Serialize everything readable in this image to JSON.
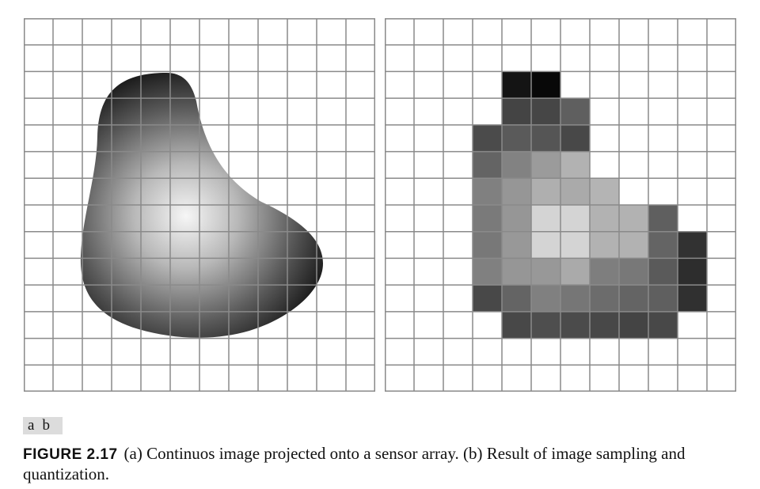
{
  "panel_labels": [
    "a",
    "b"
  ],
  "caption": {
    "figure_label": "FIGURE 2.17",
    "text": "(a) Continuos image projected onto a sensor array. (b) Result of image sampling and quantization."
  },
  "sensor_grid": {
    "columns": 12,
    "rows": 14
  },
  "continuous_image": {
    "description_colors": {
      "bright": "#f4f4f4",
      "mid": "#9a9a9a",
      "dark": "#0a0a0a"
    }
  },
  "quantized_image": {
    "levels": [
      [
        -1,
        -1,
        -1,
        -1,
        -1,
        -1,
        -1,
        -1,
        -1,
        -1,
        -1,
        -1
      ],
      [
        -1,
        -1,
        -1,
        -1,
        -1,
        -1,
        -1,
        -1,
        -1,
        -1,
        -1,
        -1
      ],
      [
        -1,
        -1,
        -1,
        -1,
        20,
        8,
        -1,
        -1,
        -1,
        -1,
        -1,
        -1
      ],
      [
        -1,
        -1,
        -1,
        -1,
        68,
        70,
        95,
        -1,
        -1,
        -1,
        -1,
        -1
      ],
      [
        -1,
        -1,
        -1,
        75,
        90,
        85,
        72,
        -1,
        -1,
        -1,
        -1,
        -1
      ],
      [
        -1,
        -1,
        -1,
        100,
        130,
        155,
        178,
        -1,
        -1,
        -1,
        -1,
        -1
      ],
      [
        -1,
        -1,
        -1,
        128,
        150,
        175,
        170,
        180,
        -1,
        -1,
        -1,
        -1
      ],
      [
        -1,
        -1,
        -1,
        122,
        150,
        212,
        212,
        178,
        178,
        95,
        -1,
        -1
      ],
      [
        -1,
        -1,
        -1,
        120,
        152,
        212,
        212,
        178,
        178,
        100,
        50,
        -1
      ],
      [
        -1,
        -1,
        -1,
        128,
        150,
        152,
        170,
        126,
        120,
        90,
        45,
        -1
      ],
      [
        -1,
        -1,
        -1,
        72,
        100,
        128,
        118,
        108,
        100,
        95,
        48,
        -1
      ],
      [
        -1,
        -1,
        -1,
        -1,
        72,
        78,
        75,
        72,
        68,
        72,
        -1,
        -1
      ],
      [
        -1,
        -1,
        -1,
        -1,
        -1,
        -1,
        -1,
        -1,
        -1,
        -1,
        -1,
        -1
      ],
      [
        -1,
        -1,
        -1,
        -1,
        -1,
        -1,
        -1,
        -1,
        -1,
        -1,
        -1,
        -1
      ]
    ]
  }
}
